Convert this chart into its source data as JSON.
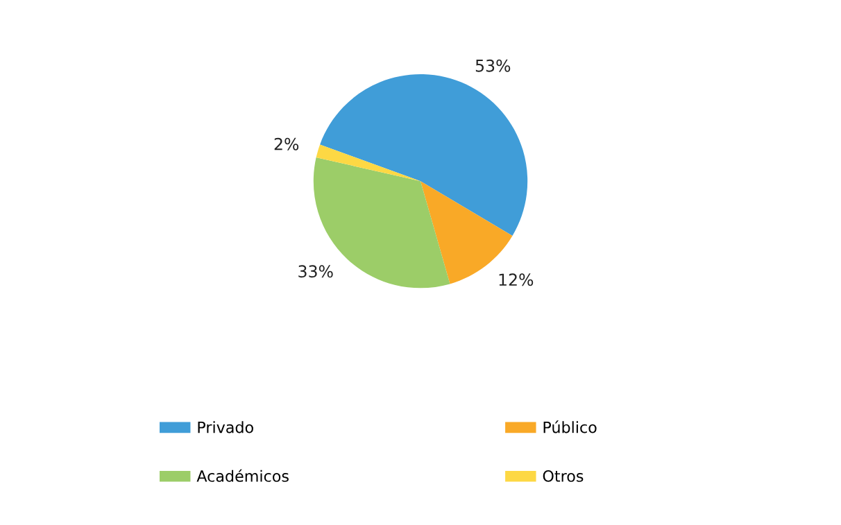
{
  "chart_data": {
    "type": "pie",
    "categories": [
      "Privado",
      "Público",
      "Académicos",
      "Otros"
    ],
    "values": [
      53,
      12,
      33,
      2
    ],
    "colors": [
      "#409dd8",
      "#f9a927",
      "#9ccd68",
      "#fdd844"
    ],
    "value_labels": [
      "53%",
      "12%",
      "33%",
      "2%"
    ],
    "legend": "bottom"
  }
}
